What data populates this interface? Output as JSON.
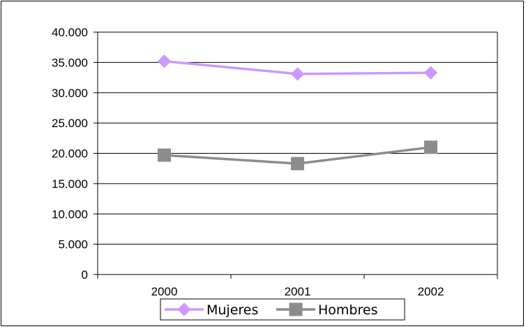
{
  "chart_data": {
    "type": "line",
    "categories": [
      "2000",
      "2001",
      "2002"
    ],
    "series": [
      {
        "name": "Mujeres",
        "values": [
          35200,
          33100,
          33300
        ],
        "color": "#cc99ff",
        "marker": "diamond"
      },
      {
        "name": "Hombres",
        "values": [
          19700,
          18300,
          21000
        ],
        "color": "#8c8c8c",
        "marker": "square"
      }
    ],
    "y_tick_labels": [
      "0",
      "5.000",
      "10.000",
      "15.000",
      "20.000",
      "25.000",
      "30.000",
      "35.000",
      "40.000"
    ],
    "ylim": [
      0,
      40000
    ],
    "ystep": 5000,
    "grid": true,
    "legend_position": "bottom"
  }
}
